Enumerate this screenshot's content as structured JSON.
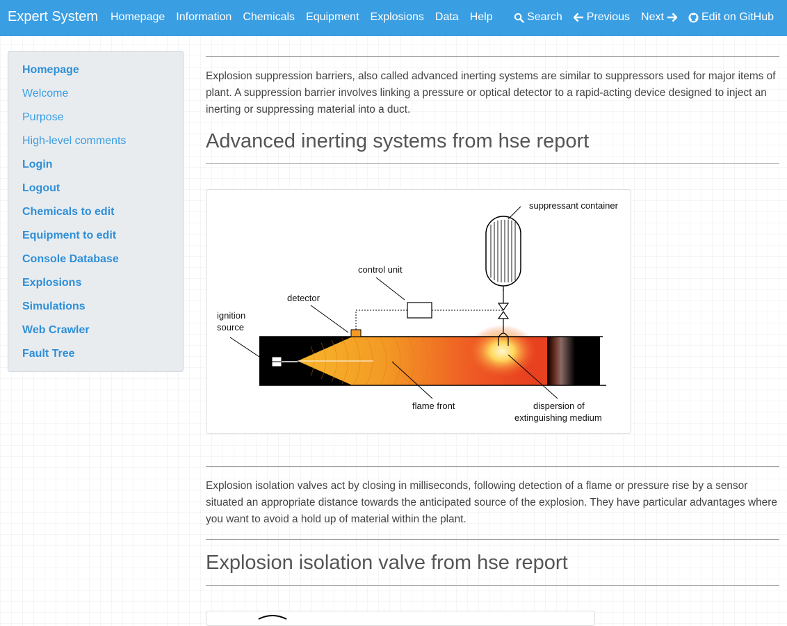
{
  "navbar": {
    "brand": "Expert System",
    "links": [
      "Homepage",
      "Information",
      "Chemicals",
      "Equipment",
      "Explosions",
      "Data",
      "Help"
    ],
    "search": "Search",
    "previous": "Previous",
    "next": "Next",
    "github": "Edit on GitHub"
  },
  "sidebar": {
    "items": [
      {
        "label": "Homepage",
        "style": "bold"
      },
      {
        "label": "Welcome",
        "style": "light"
      },
      {
        "label": "Purpose",
        "style": "light"
      },
      {
        "label": "High-level comments",
        "style": "light"
      },
      {
        "label": "Login",
        "style": "bold"
      },
      {
        "label": "Logout",
        "style": "bold"
      },
      {
        "label": "Chemicals to edit",
        "style": "bold"
      },
      {
        "label": "Equipment to edit",
        "style": "bold"
      },
      {
        "label": "Console Database",
        "style": "bold"
      },
      {
        "label": "Explosions",
        "style": "bold"
      },
      {
        "label": "Simulations",
        "style": "bold"
      },
      {
        "label": "Web Crawler",
        "style": "bold"
      },
      {
        "label": "Fault Tree",
        "style": "bold"
      }
    ]
  },
  "main": {
    "para1": "Explosion suppression barriers, also called advanced inerting systems are similar to suppressors used for major items of plant. A suppression barrier involves linking a pressure or optical detector to a rapid-acting device designed to inject an inerting or suppressing material into a duct.",
    "heading1": "Advanced inerting systems from hse report",
    "diagram1": {
      "suppressant_container": "suppressant container",
      "control_unit": "control unit",
      "detector": "detector",
      "ignition_line1": "ignition",
      "ignition_line2": "source",
      "flame_front": "flame front",
      "dispersion_line1": "dispersion of",
      "dispersion_line2": "extinguishing medium"
    },
    "para2": "Explosion isolation valves act by closing in milliseconds, following detection of a flame or pressure rise by a sensor situated an appropriate distance towards the anticipated source of the explosion. They have particular advantages where you want to avoid a hold up of material within the plant.",
    "heading2": "Explosion isolation valve from hse report"
  },
  "colors": {
    "navbar": "#3a9ee3",
    "sidebar_bg": "#e9ecef",
    "link": "#2e8fd8"
  }
}
